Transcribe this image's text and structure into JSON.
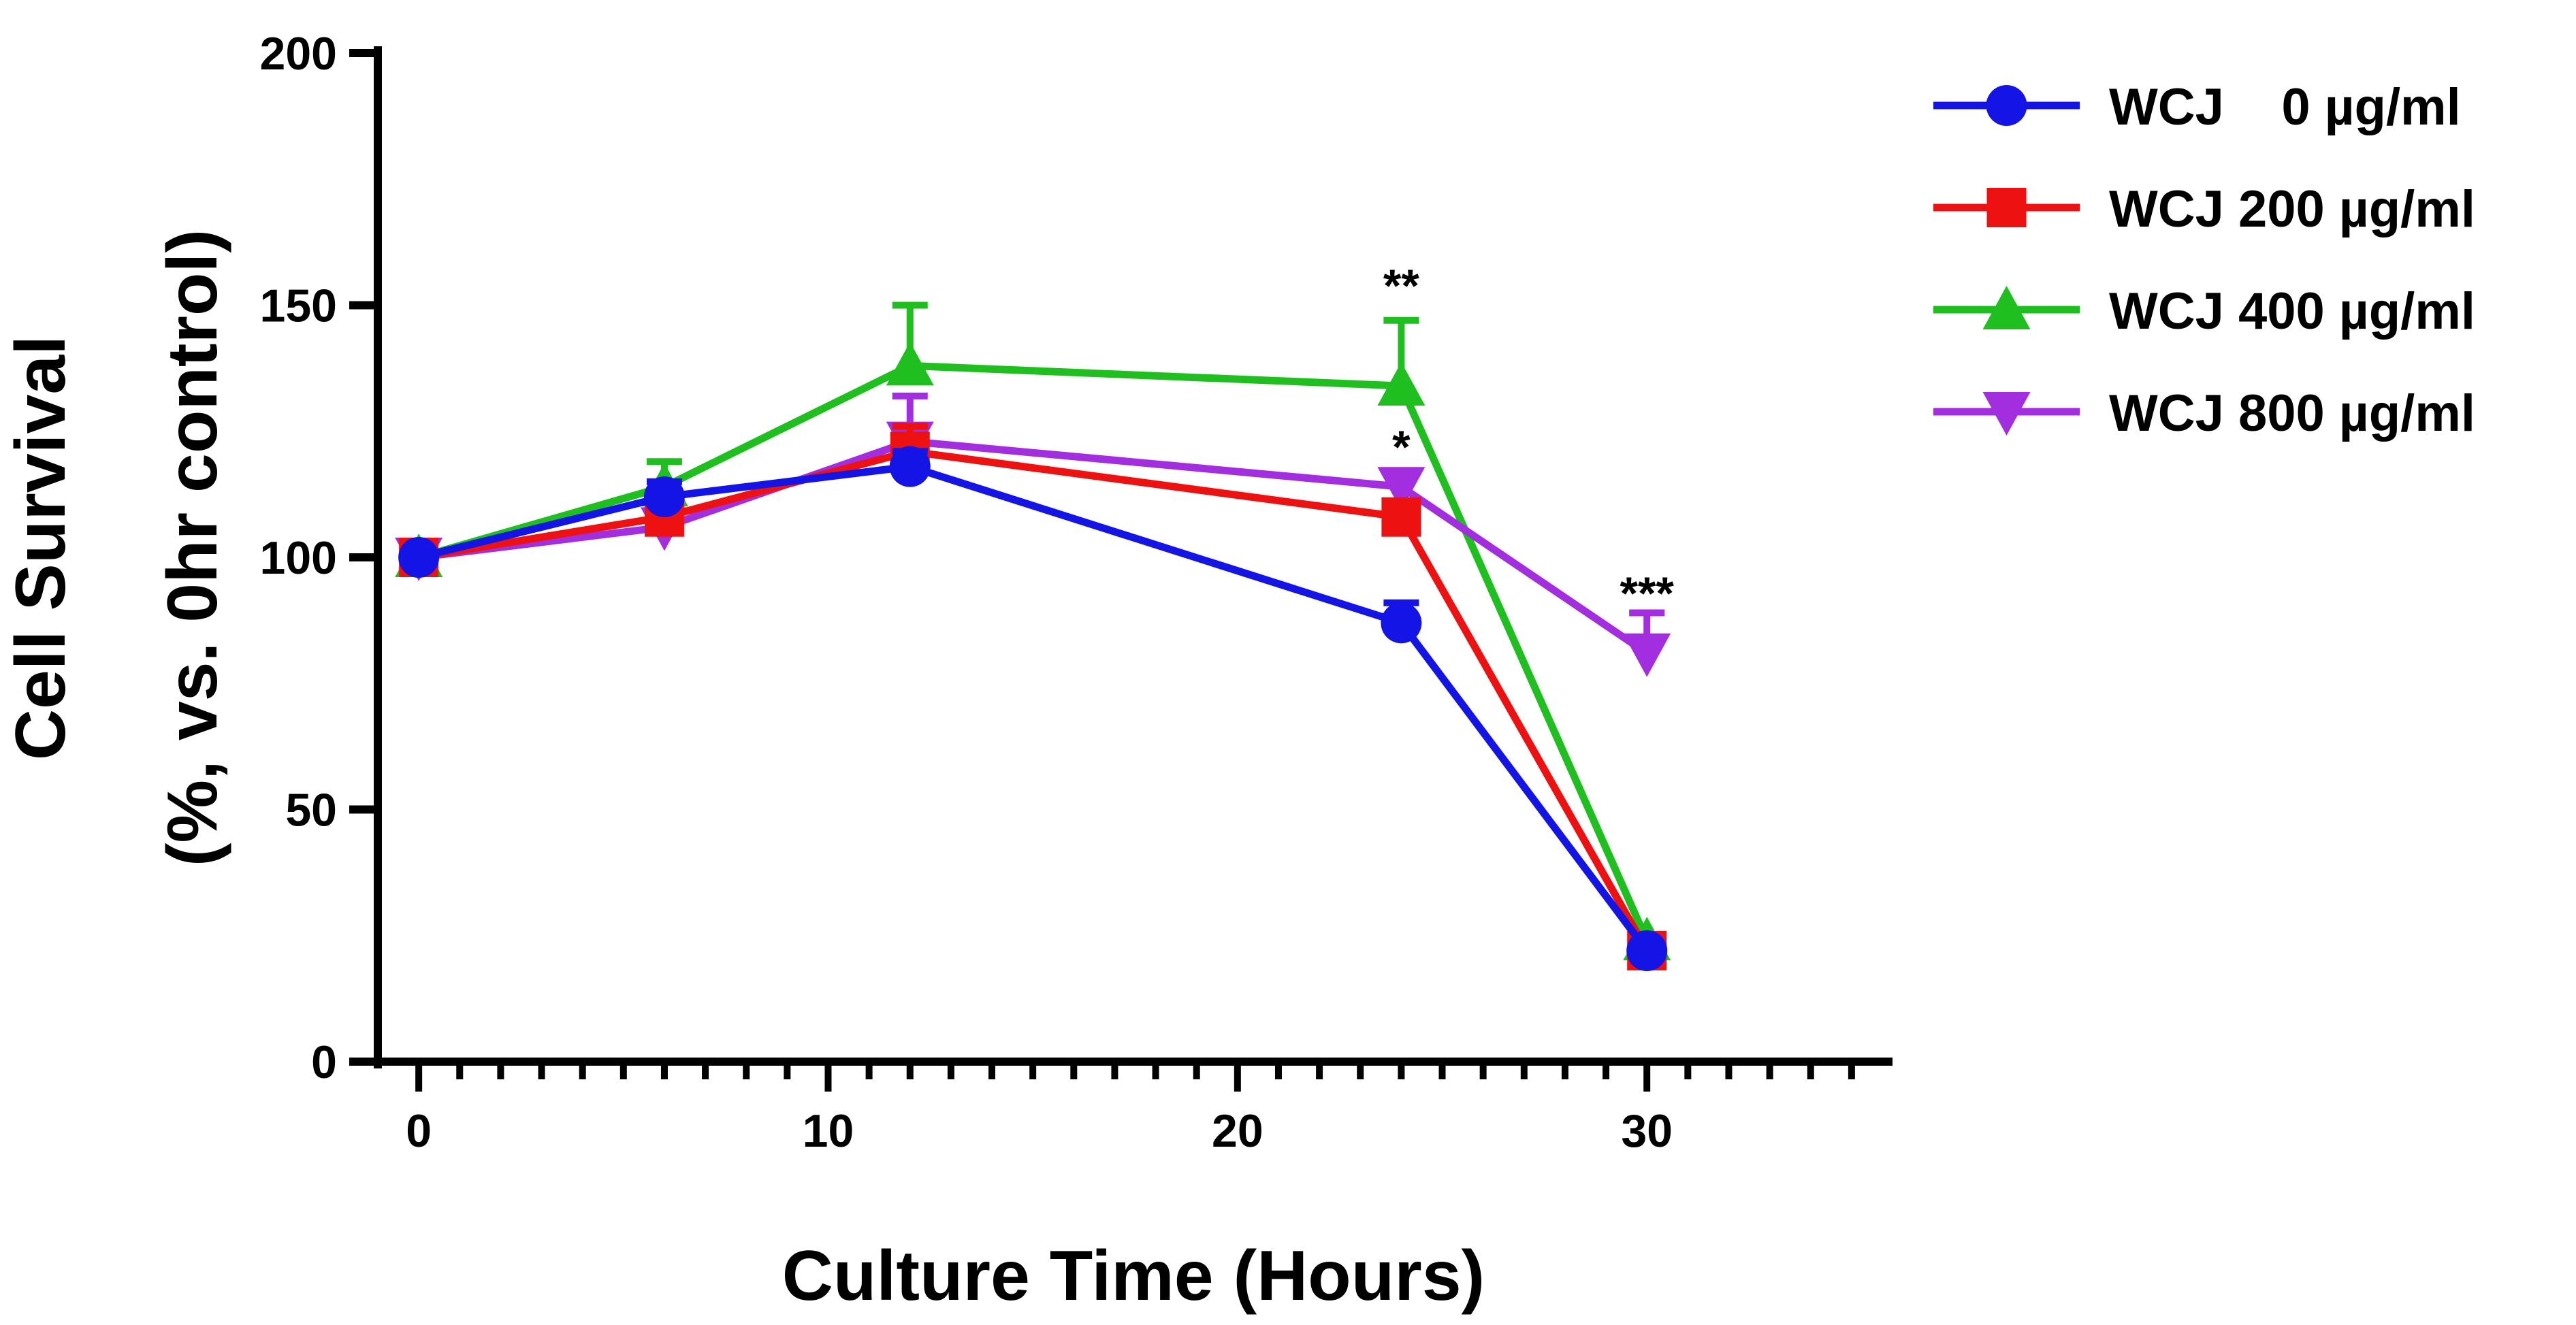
{
  "chart_data": {
    "type": "line",
    "title": "",
    "xlabel": "Culture Time (Hours)",
    "ylabel_line1": "Cell Survival",
    "ylabel_line2": "(%, vs. 0hr control)",
    "xlim": [
      -1,
      36
    ],
    "ylim": [
      0,
      200
    ],
    "x_ticks": [
      0,
      10,
      20,
      30
    ],
    "x_tick_labels": [
      "0",
      "10",
      "20",
      "30"
    ],
    "x_minor_step": 1,
    "y_ticks": [
      0,
      50,
      100,
      150,
      200
    ],
    "y_tick_labels": [
      "0",
      "50",
      "100",
      "150",
      "200"
    ],
    "grid": false,
    "legend_position": "top-right, outside plot",
    "x": [
      0,
      6,
      12,
      24,
      30
    ],
    "series": [
      {
        "name": "WCJ    0 µg/ml",
        "marker": "circle",
        "color": "#1414e6",
        "values": [
          100,
          112,
          118,
          87,
          22
        ],
        "errors": [
          0,
          3,
          3,
          4,
          0
        ]
      },
      {
        "name": "WCJ 200 µg/ml",
        "marker": "square",
        "color": "#ee1111",
        "values": [
          100,
          108,
          121,
          108,
          22
        ],
        "errors": [
          0,
          5,
          5,
          3,
          0
        ]
      },
      {
        "name": "WCJ 400 µg/ml",
        "marker": "triangle-up",
        "color": "#1fbf1f",
        "values": [
          100,
          114,
          138,
          134,
          24
        ],
        "errors": [
          0,
          5,
          12,
          13,
          0
        ]
      },
      {
        "name": "WCJ 800 µg/ml",
        "marker": "triangle-down",
        "color": "#a22ee0",
        "values": [
          100,
          106,
          123,
          114,
          81
        ],
        "errors": [
          0,
          4,
          9,
          3,
          8
        ]
      }
    ],
    "annotations": [
      {
        "text": "**",
        "x": 24,
        "y": 154
      },
      {
        "text": "*",
        "x": 24,
        "y": 122
      },
      {
        "text": "***",
        "x": 30,
        "y": 93
      }
    ]
  }
}
